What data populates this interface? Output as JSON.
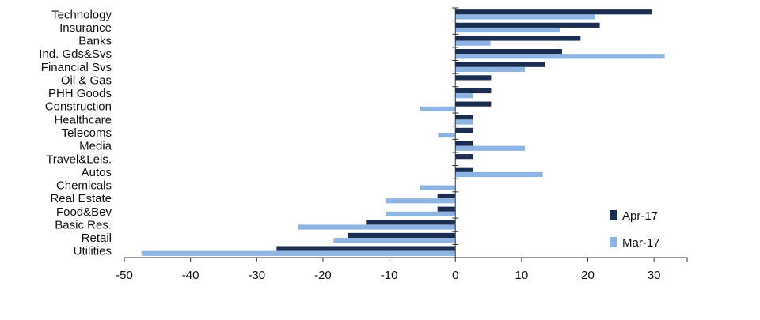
{
  "chart_data": {
    "type": "bar",
    "orientation": "horizontal",
    "categories": [
      "Technology",
      "Insurance",
      "Banks",
      "Ind. Gds&Svs",
      "Financial Svs",
      "Oil & Gas",
      "PHH Goods",
      "Construction",
      "Healthcare",
      "Telecoms",
      "Media",
      "Travel&Leis.",
      "Autos",
      "Chemicals",
      "Real Estate",
      "Food&Bev",
      "Basic Res.",
      "Retail",
      "Utilities"
    ],
    "series": [
      {
        "name": "Apr-17",
        "color": "#1b2e52",
        "values": [
          29.7,
          21.8,
          18.9,
          16.1,
          13.5,
          5.4,
          5.4,
          5.4,
          2.7,
          2.7,
          2.7,
          2.7,
          2.7,
          0,
          -2.7,
          -2.7,
          -13.5,
          -16.2,
          -27.0
        ]
      },
      {
        "name": "Mar-17",
        "color": "#8db4e2",
        "values": [
          21.1,
          15.8,
          5.3,
          31.6,
          10.5,
          0,
          2.6,
          -5.3,
          2.6,
          -2.6,
          10.5,
          0,
          13.2,
          -5.3,
          -10.5,
          -10.5,
          -23.7,
          -18.4,
          -47.4
        ]
      }
    ],
    "xlim": [
      -50,
      35
    ],
    "xticks": [
      -50,
      -40,
      -30,
      -20,
      -10,
      0,
      10,
      20,
      30
    ],
    "legend": "bottom-right",
    "grid": false
  }
}
